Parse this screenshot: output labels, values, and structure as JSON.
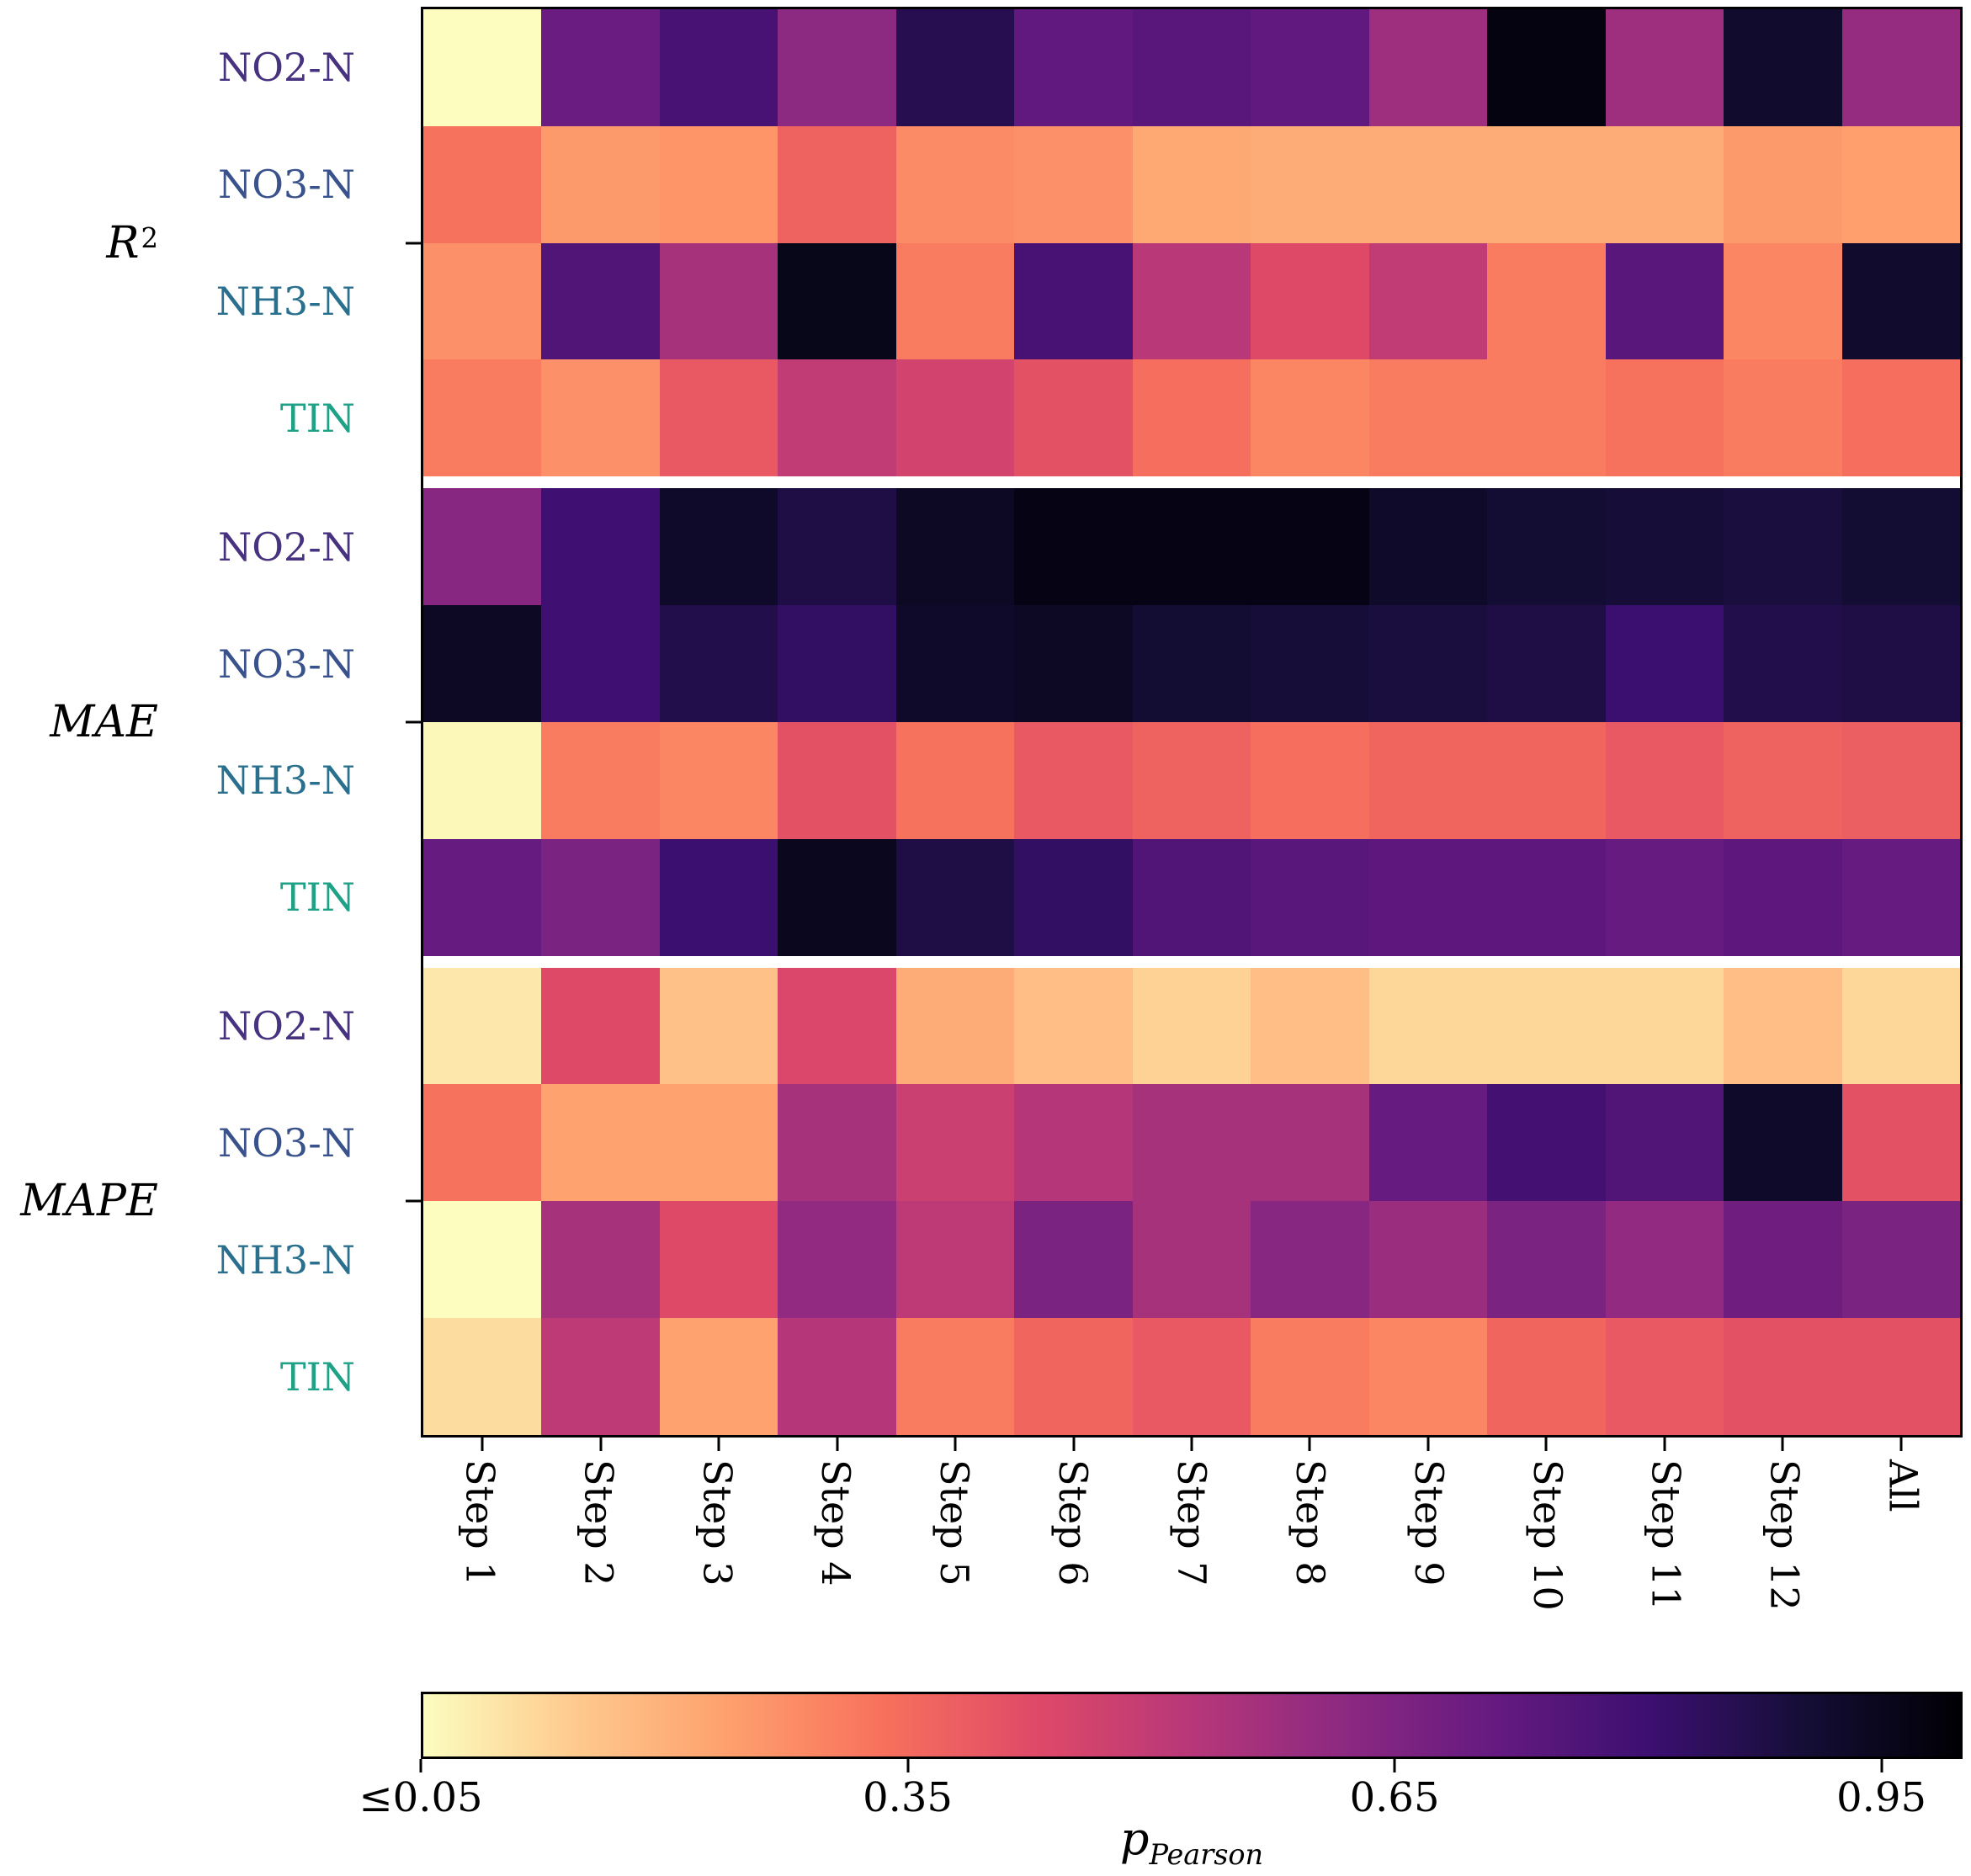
{
  "chart_data": {
    "type": "heatmap",
    "colormap": "magma_reversed",
    "value_scale": {
      "min": 0.05,
      "max": 1.0
    },
    "columns": [
      "Step 1",
      "Step 2",
      "Step 3",
      "Step 4",
      "Step 5",
      "Step 6",
      "Step 7",
      "Step 8",
      "Step 9",
      "Step 10",
      "Step 11",
      "Step 12",
      "All"
    ],
    "row_label_colors": {
      "NO2-N": "#46327e",
      "NO3-N": "#3a528b",
      "NH3-N": "#2a708e",
      "TIN": "#1fa187"
    },
    "groups": [
      {
        "id": "R2",
        "label_base": "R",
        "label_sup": "2",
        "rows": [
          {
            "label": "NO2-N",
            "values": [
              0.05,
              0.7,
              0.78,
              0.62,
              0.86,
              0.72,
              0.74,
              0.72,
              0.58,
              0.98,
              0.58,
              0.92,
              0.6
            ]
          },
          {
            "label": "NO3-N",
            "values": [
              0.33,
              0.25,
              0.26,
              0.37,
              0.28,
              0.27,
              0.22,
              0.21,
              0.21,
              0.21,
              0.21,
              0.25,
              0.24
            ]
          },
          {
            "label": "NH3-N",
            "values": [
              0.27,
              0.76,
              0.56,
              0.96,
              0.31,
              0.78,
              0.52,
              0.43,
              0.5,
              0.31,
              0.74,
              0.29,
              0.92
            ]
          },
          {
            "label": "TIN",
            "values": [
              0.31,
              0.27,
              0.39,
              0.5,
              0.46,
              0.41,
              0.34,
              0.29,
              0.31,
              0.31,
              0.33,
              0.31,
              0.34
            ]
          }
        ]
      },
      {
        "id": "MAE",
        "label_base": "MAE",
        "label_sup": "",
        "rows": [
          {
            "label": "NO2-N",
            "values": [
              0.63,
              0.8,
              0.93,
              0.88,
              0.94,
              0.97,
              0.97,
              0.97,
              0.93,
              0.91,
              0.9,
              0.89,
              0.91
            ]
          },
          {
            "label": "NO3-N",
            "values": [
              0.94,
              0.8,
              0.87,
              0.83,
              0.93,
              0.94,
              0.91,
              0.9,
              0.89,
              0.88,
              0.81,
              0.87,
              0.88
            ]
          },
          {
            "label": "NH3-N",
            "values": [
              0.06,
              0.31,
              0.29,
              0.41,
              0.33,
              0.39,
              0.37,
              0.34,
              0.36,
              0.36,
              0.39,
              0.37,
              0.38
            ]
          },
          {
            "label": "TIN",
            "values": [
              0.71,
              0.66,
              0.81,
              0.95,
              0.88,
              0.83,
              0.76,
              0.74,
              0.73,
              0.73,
              0.71,
              0.73,
              0.71
            ]
          }
        ]
      },
      {
        "id": "MAPE",
        "label_base": "MAPE",
        "label_sup": "",
        "rows": [
          {
            "label": "NO2-N",
            "values": [
              0.09,
              0.43,
              0.16,
              0.44,
              0.21,
              0.17,
              0.13,
              0.17,
              0.12,
              0.12,
              0.12,
              0.17,
              0.12
            ]
          },
          {
            "label": "NO3-N",
            "values": [
              0.33,
              0.23,
              0.23,
              0.56,
              0.48,
              0.53,
              0.56,
              0.56,
              0.71,
              0.79,
              0.76,
              0.93,
              0.41
            ]
          },
          {
            "label": "NH3-N",
            "values": [
              0.05,
              0.56,
              0.43,
              0.61,
              0.51,
              0.66,
              0.56,
              0.63,
              0.59,
              0.66,
              0.61,
              0.69,
              0.66
            ]
          },
          {
            "label": "TIN",
            "values": [
              0.11,
              0.51,
              0.23,
              0.53,
              0.31,
              0.36,
              0.39,
              0.31,
              0.29,
              0.36,
              0.39,
              0.41,
              0.41
            ]
          }
        ]
      }
    ],
    "colorbar": {
      "label_base": "p",
      "label_sub": "Pearson",
      "ticks": [
        {
          "value": 0.05,
          "label": "≤0.05"
        },
        {
          "value": 0.35,
          "label": "0.35"
        },
        {
          "value": 0.65,
          "label": "0.65"
        },
        {
          "value": 0.95,
          "label": "0.95"
        }
      ]
    }
  }
}
